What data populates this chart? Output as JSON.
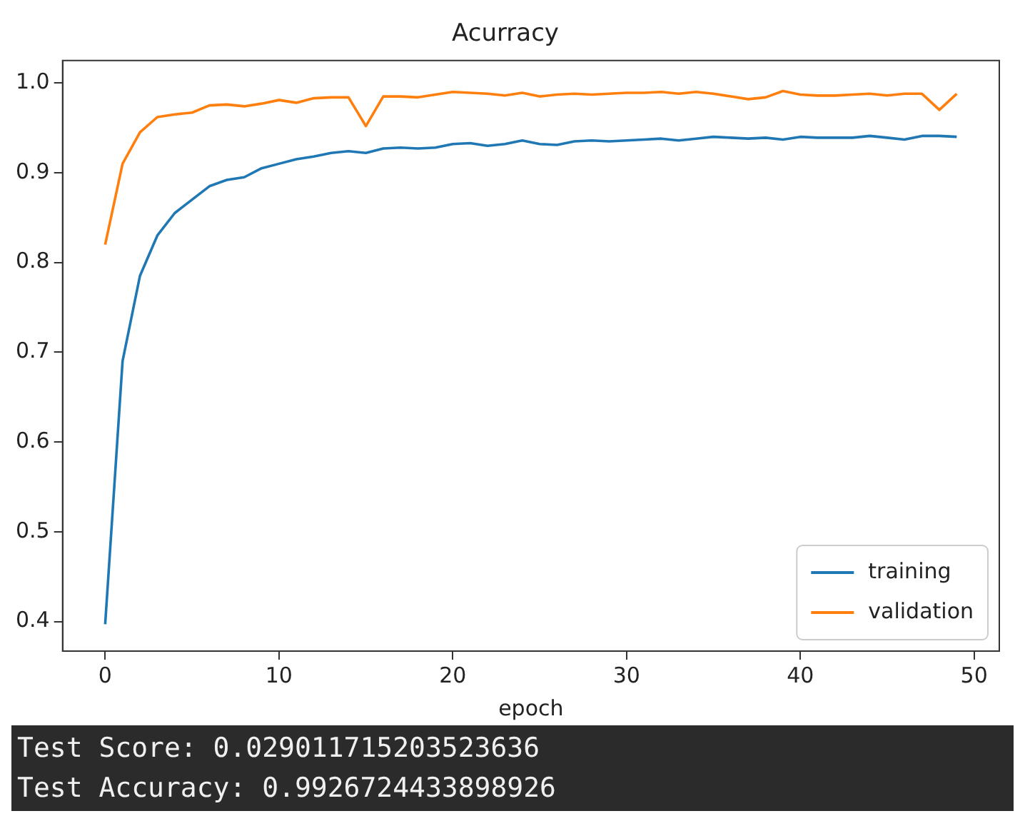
{
  "chart_data": {
    "type": "line",
    "title": "Acurracy",
    "xlabel": "epoch",
    "x": [
      0,
      1,
      2,
      3,
      4,
      5,
      6,
      7,
      8,
      9,
      10,
      11,
      12,
      13,
      14,
      15,
      16,
      17,
      18,
      19,
      20,
      21,
      22,
      23,
      24,
      25,
      26,
      27,
      28,
      29,
      30,
      31,
      32,
      33,
      34,
      35,
      36,
      37,
      38,
      39,
      40,
      41,
      42,
      43,
      44,
      45,
      46,
      47,
      48,
      49
    ],
    "series": [
      {
        "name": "training",
        "color": "#1f77b4",
        "values": [
          0.397,
          0.69,
          0.785,
          0.83,
          0.855,
          0.87,
          0.885,
          0.892,
          0.895,
          0.905,
          0.91,
          0.915,
          0.918,
          0.922,
          0.924,
          0.922,
          0.927,
          0.928,
          0.927,
          0.928,
          0.932,
          0.933,
          0.93,
          0.932,
          0.936,
          0.932,
          0.931,
          0.935,
          0.936,
          0.935,
          0.936,
          0.937,
          0.938,
          0.936,
          0.938,
          0.94,
          0.939,
          0.938,
          0.939,
          0.937,
          0.94,
          0.939,
          0.939,
          0.939,
          0.941,
          0.939,
          0.937,
          0.941,
          0.941,
          0.94
        ]
      },
      {
        "name": "validation",
        "color": "#ff7f0e",
        "values": [
          0.82,
          0.91,
          0.945,
          0.962,
          0.965,
          0.967,
          0.975,
          0.976,
          0.974,
          0.977,
          0.981,
          0.978,
          0.983,
          0.984,
          0.984,
          0.952,
          0.985,
          0.985,
          0.984,
          0.987,
          0.99,
          0.989,
          0.988,
          0.986,
          0.989,
          0.985,
          0.987,
          0.988,
          0.987,
          0.988,
          0.989,
          0.989,
          0.99,
          0.988,
          0.99,
          0.988,
          0.985,
          0.982,
          0.984,
          0.991,
          0.987,
          0.986,
          0.986,
          0.987,
          0.988,
          0.986,
          0.988,
          0.988,
          0.97,
          0.988
        ]
      }
    ],
    "xlim": [
      -2.45,
      51.45
    ],
    "xticks": [
      0,
      10,
      20,
      30,
      40,
      50
    ],
    "ylim": [
      0.367,
      1.025
    ],
    "yticks": [
      {
        "value": 0.4,
        "label": "0.4"
      },
      {
        "value": 0.5,
        "label": "0.5"
      },
      {
        "value": 0.6,
        "label": "0.6"
      },
      {
        "value": 0.7,
        "label": "0.7"
      },
      {
        "value": 0.8,
        "label": "0.8"
      },
      {
        "value": 0.9,
        "label": "0.9"
      },
      {
        "value": 1.0,
        "label": "1.0"
      }
    ],
    "grid": false,
    "legend": "bottom right",
    "marker": "none",
    "line_style": "solid",
    "annotations": [
      "Test Score: 0.029011715203523636",
      "Test Accuracy: 0.9926724433898926"
    ]
  }
}
